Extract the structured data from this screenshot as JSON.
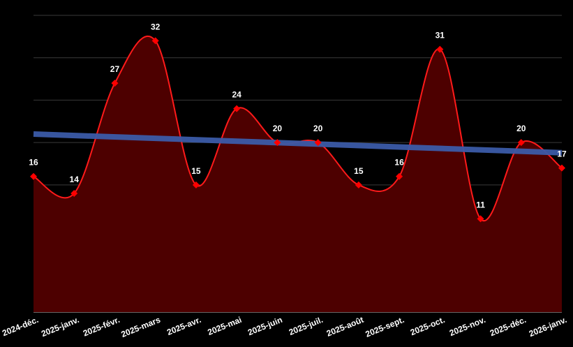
{
  "chart_data": {
    "type": "area",
    "categories": [
      "2024-déc.",
      "2025-janv.",
      "2025-févr.",
      "2025-mars",
      "2025-avr.",
      "2025-mai",
      "2025-juin",
      "2025-juil.",
      "2025-août",
      "2025-sept.",
      "2025-oct.",
      "2025-nov.",
      "2025-déc.",
      "2026-janv."
    ],
    "series": [
      {
        "values": [
          16,
          14,
          27,
          32,
          15,
          24,
          20,
          20,
          15,
          16,
          31,
          11,
          20,
          17
        ]
      }
    ],
    "trendline": {
      "start": 21,
      "end": 18.8
    },
    "ylim": [
      0,
      35
    ],
    "grid": true,
    "legend": "none",
    "colors": {
      "background": "#000000",
      "line": "#ff1a1a",
      "area": "#4d0000",
      "marker": "#ff0000",
      "trendline": "#3b5ba8",
      "grid": "#3a3a3a",
      "text": "#ffffff"
    }
  }
}
